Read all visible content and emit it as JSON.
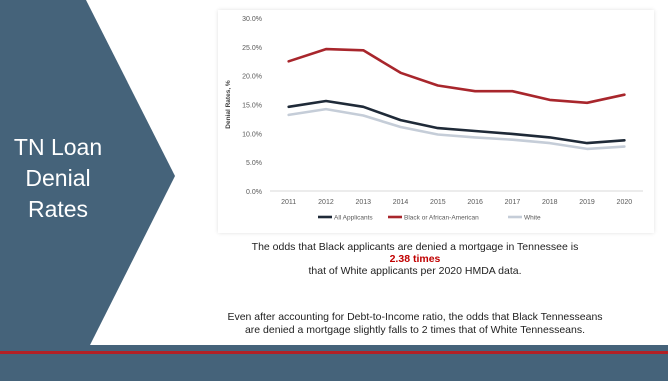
{
  "slide": {
    "title_lines": [
      "TN Loan",
      "Denial",
      "Rates"
    ]
  },
  "colors": {
    "slate_blue": "#45637a",
    "accent_red": "#b32025",
    "highlight_red": "#c00000"
  },
  "text": {
    "line1": "The odds that Black applicants are denied a mortgage in Tennessee is",
    "highlight": "2.38 times",
    "line2": "that of White applicants per 2020 HMDA data.",
    "para2_line1": "Even after accounting for Debt-to-Income ratio, the odds that Black Tennesseans",
    "para2_line2": "are denied a mortgage slightly falls to 2 times that of White Tennesseans."
  },
  "chart_data": {
    "type": "line",
    "ylabel": "Denial Rates, %",
    "x": [
      "2011",
      "2012",
      "2013",
      "2014",
      "2015",
      "2016",
      "2017",
      "2018",
      "2019",
      "2020"
    ],
    "ylim": [
      0,
      30
    ],
    "yticks": [
      "0.0%",
      "5.0%",
      "10.0%",
      "15.0%",
      "20.0%",
      "25.0%",
      "30.0%"
    ],
    "grid": false,
    "legend": "bottom",
    "series": [
      {
        "name": "All Applicants",
        "color": "#1f2a38",
        "values": [
          14.6,
          15.6,
          14.6,
          12.3,
          10.9,
          10.4,
          9.9,
          9.3,
          8.3,
          8.8
        ]
      },
      {
        "name": "Black or African-American",
        "color": "#a8262c",
        "values": [
          22.5,
          24.6,
          24.4,
          20.5,
          18.3,
          17.3,
          17.3,
          15.8,
          15.3,
          16.7
        ]
      },
      {
        "name": "White",
        "color": "#c5cdd8",
        "values": [
          13.2,
          14.2,
          13.1,
          11.1,
          9.8,
          9.3,
          8.9,
          8.3,
          7.3,
          7.7
        ]
      }
    ]
  }
}
